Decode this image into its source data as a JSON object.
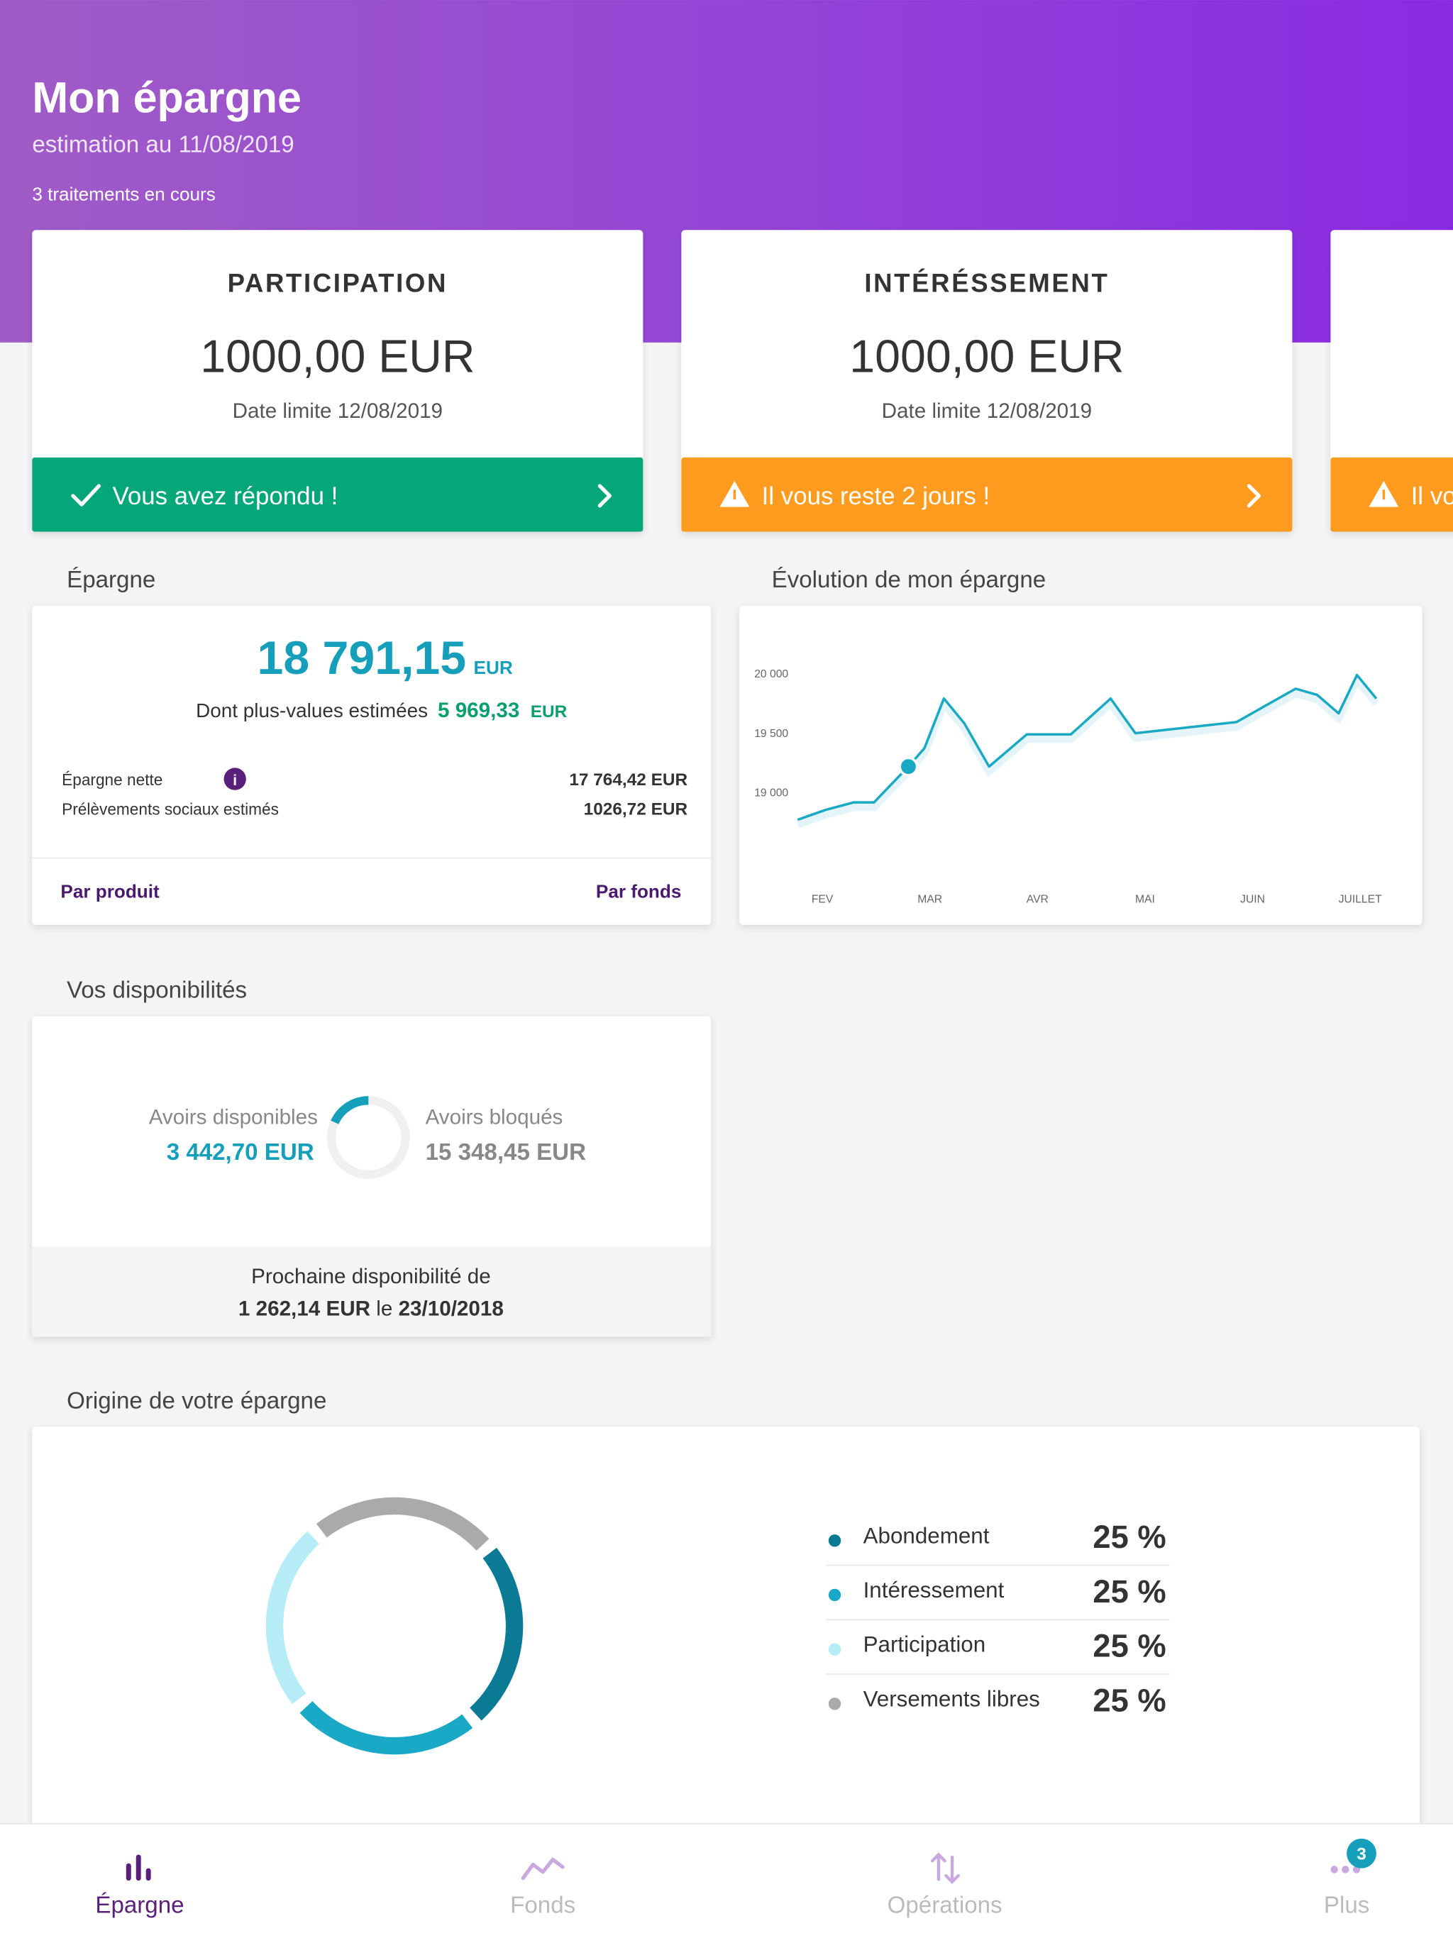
{
  "header": {
    "title": "Mon épargne",
    "subtitle": "estimation au 11/08/2019",
    "status": "3 traitements en cours"
  },
  "cards": [
    {
      "title": "PARTICIPATION",
      "amount": "1000,00 EUR",
      "deadline": "Date limite 12/08/2019",
      "action": "Vous avez répondu !",
      "color": "#05a77a"
    },
    {
      "title": "INTÉRÉSSEMENT",
      "amount": "1000,00 EUR",
      "deadline": "Date limite 12/08/2019",
      "action": "Il vous reste 2 jours !",
      "color": "#ff9c1f"
    },
    {
      "action": "Il vo",
      "color": "#ff9c1f"
    }
  ],
  "savings": {
    "heading": "Épargne",
    "total": "18 791,15",
    "total_unit": "EUR",
    "gains_label": "Dont plus-values estimées",
    "gains": "5 969,33",
    "gains_unit": "EUR",
    "rows": [
      [
        "Épargne nette",
        "17 764,42 EUR"
      ],
      [
        "Prélèvements sociaux estimés",
        "1026,72 EUR"
      ]
    ],
    "links": [
      "Par produit",
      "Par fonds"
    ]
  },
  "evolution": {
    "type": "line",
    "title": "Évolution de mon épargne",
    "color": "#19a9c2",
    "x": [
      -0.23,
      0.03,
      0.29,
      0.48,
      0.8,
      0.95,
      1.13,
      1.32,
      1.55,
      1.9,
      2.31,
      2.68,
      2.91,
      3.85,
      4.4,
      4.6,
      4.8,
      4.97,
      5.15
    ],
    "values": [
      18771,
      18854,
      18917,
      18917,
      19219,
      19375,
      19792,
      19583,
      19219,
      19490,
      19490,
      19792,
      19500,
      19594,
      19875,
      19823,
      19667,
      19990,
      19792
    ],
    "highlight": 4,
    "xlim": [
      -0.23,
      5.15
    ],
    "xticks": [
      {
        "value": 0,
        "label": "FEV"
      },
      {
        "value": 1,
        "label": "MAR"
      },
      {
        "value": 2,
        "label": "AVR"
      },
      {
        "value": 3,
        "label": "MAI"
      },
      {
        "value": 4,
        "label": "JUIN"
      },
      {
        "value": 5,
        "label": "JUILLET"
      }
    ],
    "ylim": [
      18600,
      20100
    ],
    "yticks": [
      {
        "value": 20000,
        "label": "20 000"
      },
      {
        "value": 19500,
        "label": "19 500"
      },
      {
        "value": 19000,
        "label": "19 000"
      }
    ]
  },
  "availability": {
    "type": "donut",
    "heading": "Vos disponibilités",
    "categories": [
      "Avoirs disponibles",
      "Avoirs bloqués"
    ],
    "values": [
      3442.7,
      15348.45
    ],
    "value_labels": [
      "3 442,70 EUR",
      "15 348,45 EUR"
    ],
    "colors": [
      "#169fbb",
      "#f0f0f0"
    ],
    "next_label": "Prochaine disponibilité de",
    "next_amount": "1 262,14 EUR",
    "next_connector": "le",
    "next_date": "23/10/2018"
  },
  "origin": {
    "type": "donut",
    "heading": "Origine de votre épargne",
    "categories": [
      "Abondement",
      "Intéressement",
      "Participation",
      "Versements libres"
    ],
    "values": [
      25,
      25,
      25,
      25
    ],
    "value_labels": [
      "25 %",
      "25 %",
      "25 %",
      "25 %"
    ],
    "colors": [
      "#0b7a94",
      "#19a9c6",
      "#b5ecf5",
      "#aaaaaa"
    ]
  },
  "nav": {
    "items": [
      "Épargne",
      "Fonds",
      "Opérations",
      "Plus"
    ],
    "badge": "3"
  }
}
